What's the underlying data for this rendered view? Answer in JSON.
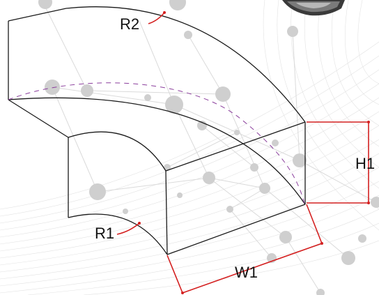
{
  "labels": {
    "r2": "R2",
    "r1": "R1",
    "w1": "W1",
    "h1": "H1"
  },
  "colors": {
    "outline": "#1a1a1a",
    "dimension": "#d42020",
    "centerline": "#8a3d9c",
    "network_node": "#cfcfcf",
    "network_line": "#dcdcdc",
    "photo_dark": "#3a3a3a"
  }
}
